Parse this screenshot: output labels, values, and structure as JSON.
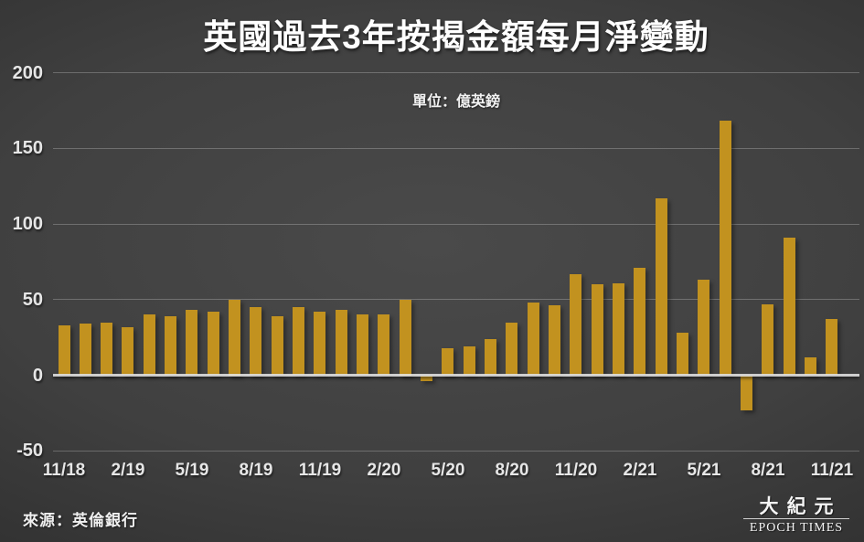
{
  "header": {
    "title": "英國過去3年按揭金額每月淨變動",
    "subtitle": "單位：億英鎊"
  },
  "footer": {
    "source": "來源：英倫銀行"
  },
  "logo": {
    "chinese": "大紀元",
    "english": "EPOCH TIMES"
  },
  "colors": {
    "bar": "#c2921f",
    "background_center": "#4a4a4a",
    "background_edge": "#1d1d1d",
    "grid": "rgba(255,255,255,0.24)",
    "zero_line": "#e8e8e8",
    "text": "#e6e6e6"
  },
  "chart_data": {
    "type": "bar",
    "title": "英國過去3年按揭金額每月淨變動",
    "unit_label": "單位：億英鎊",
    "source": "來源：英倫銀行",
    "categories": [
      "11/18",
      "12/18",
      "1/19",
      "2/19",
      "3/19",
      "4/19",
      "5/19",
      "6/19",
      "7/19",
      "8/19",
      "9/19",
      "10/19",
      "11/19",
      "12/19",
      "1/20",
      "2/20",
      "3/20",
      "4/20",
      "5/20",
      "6/20",
      "7/20",
      "8/20",
      "9/20",
      "10/20",
      "11/20",
      "12/20",
      "1/21",
      "2/21",
      "3/21",
      "4/21",
      "5/21",
      "6/21",
      "7/21",
      "8/21",
      "9/21",
      "10/21",
      "11/21"
    ],
    "values": [
      33,
      34,
      35,
      32,
      40,
      39,
      43,
      42,
      50,
      45,
      39,
      45,
      42,
      43,
      40,
      40,
      50,
      -4,
      18,
      19,
      24,
      35,
      48,
      46,
      67,
      60,
      61,
      71,
      117,
      28,
      63,
      168,
      -23,
      47,
      91,
      12,
      37
    ],
    "x_tick_labels": [
      "11/18",
      "2/19",
      "5/19",
      "8/19",
      "11/19",
      "2/20",
      "5/20",
      "8/20",
      "11/20",
      "2/21",
      "5/21",
      "8/21",
      "11/21"
    ],
    "x_tick_every": 3,
    "y_ticks": [
      200,
      150,
      100,
      50,
      0,
      -50
    ],
    "ylim": [
      -50,
      200
    ],
    "grid": "horizontal",
    "legend": "none"
  }
}
